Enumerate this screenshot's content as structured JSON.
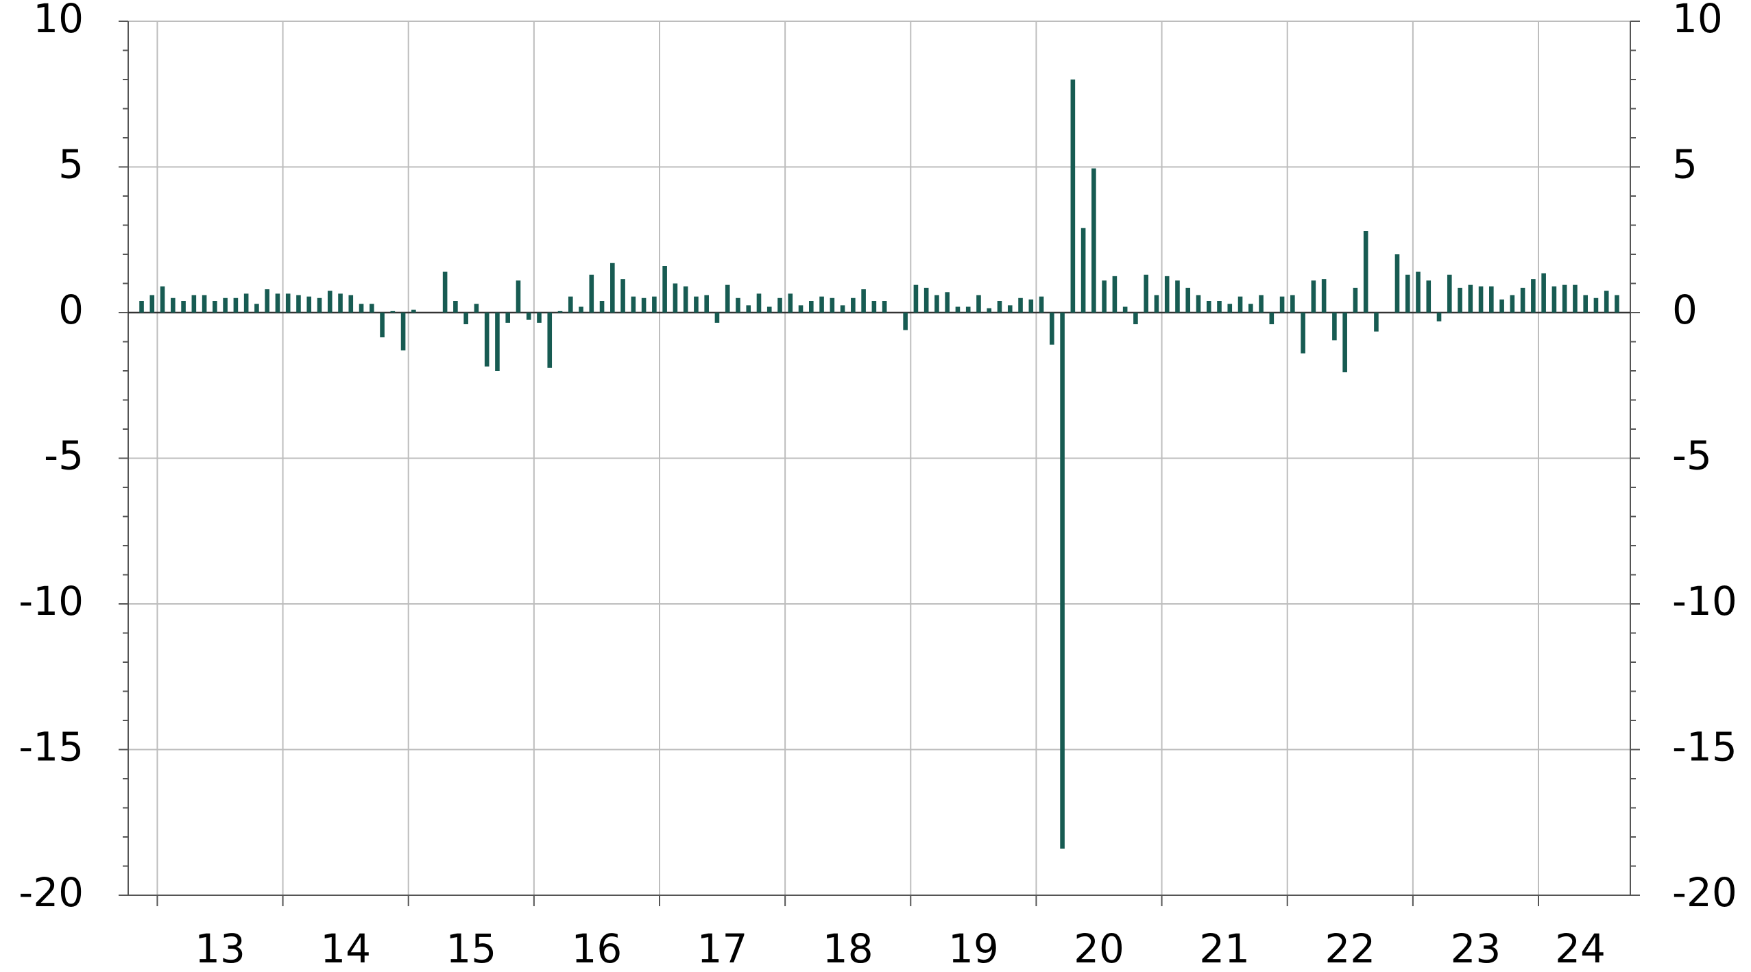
{
  "chart_data": {
    "type": "bar",
    "color": "#175b52",
    "grid": true,
    "categories": [
      null,
      null,
      "13",
      null,
      null,
      null,
      null,
      null,
      null,
      null,
      null,
      null,
      null,
      null,
      "14",
      null,
      null,
      null,
      null,
      null,
      null,
      null,
      null,
      null,
      null,
      null,
      "15",
      null,
      null,
      null,
      null,
      null,
      null,
      null,
      null,
      null,
      null,
      null,
      "16",
      null,
      null,
      null,
      null,
      null,
      null,
      null,
      null,
      null,
      null,
      null,
      "17",
      null,
      null,
      null,
      null,
      null,
      null,
      null,
      null,
      null,
      null,
      null,
      "18",
      null,
      null,
      null,
      null,
      null,
      null,
      null,
      null,
      null,
      null,
      null,
      "19",
      null,
      null,
      null,
      null,
      null,
      null,
      null,
      null,
      null,
      null,
      null,
      "20",
      null,
      null,
      null,
      null,
      null,
      null,
      null,
      null,
      null,
      null,
      null,
      "21",
      null,
      null,
      null,
      null,
      null,
      null,
      null,
      null,
      null,
      null,
      null,
      "22",
      null,
      null,
      null,
      null,
      null,
      null,
      null,
      null,
      null,
      null,
      null,
      "23",
      null,
      null,
      null,
      null,
      null,
      null,
      null,
      null,
      null,
      null,
      null,
      "24",
      null,
      null,
      null,
      null,
      null,
      null,
      null
    ],
    "values": [
      0.4,
      0.6,
      0.9,
      0.5,
      0.4,
      0.6,
      0.6,
      0.4,
      0.5,
      0.5,
      0.65,
      0.3,
      0.8,
      0.65,
      0.65,
      0.6,
      0.55,
      0.5,
      0.75,
      0.65,
      0.6,
      0.3,
      0.3,
      -0.85,
      0.05,
      -1.3,
      0.1,
      0,
      0,
      1.4,
      0.4,
      -0.4,
      0.3,
      -1.85,
      -2.0,
      -0.35,
      1.1,
      -0.25,
      -0.35,
      -1.9,
      0.05,
      0.55,
      0.2,
      1.3,
      0.4,
      1.7,
      1.15,
      0.55,
      0.5,
      0.55,
      1.6,
      1.0,
      0.9,
      0.55,
      0.6,
      -0.35,
      0.95,
      0.5,
      0.25,
      0.65,
      0.2,
      0.5,
      0.65,
      0.25,
      0.4,
      0.55,
      0.5,
      0.25,
      0.5,
      0.8,
      0.4,
      0.4,
      0,
      -0.6,
      0.95,
      0.85,
      0.6,
      0.7,
      0.2,
      0.2,
      0.6,
      0.15,
      0.4,
      0.25,
      0.5,
      0.45,
      0.55,
      -1.1,
      -18.4,
      8.0,
      2.9,
      4.95,
      1.1,
      1.25,
      0.2,
      -0.4,
      1.3,
      0.6,
      1.25,
      1.1,
      0.85,
      0.6,
      0.4,
      0.4,
      0.3,
      0.55,
      0.3,
      0.6,
      -0.4,
      0.55,
      0.6,
      -1.4,
      1.1,
      1.15,
      -0.95,
      -2.05,
      0.85,
      2.8,
      -0.65,
      0,
      2.0,
      1.3,
      1.4,
      1.1,
      -0.3,
      1.3,
      0.85,
      0.95,
      0.9,
      0.9,
      0.45,
      0.6,
      0.85,
      1.15,
      1.35,
      0.9,
      0.95,
      0.95,
      0.6,
      0.5,
      0.75,
      0.6
    ],
    "ylim": [
      -20,
      10
    ],
    "yticks": [
      -20,
      -15,
      -10,
      -5,
      0,
      5,
      10
    ]
  }
}
